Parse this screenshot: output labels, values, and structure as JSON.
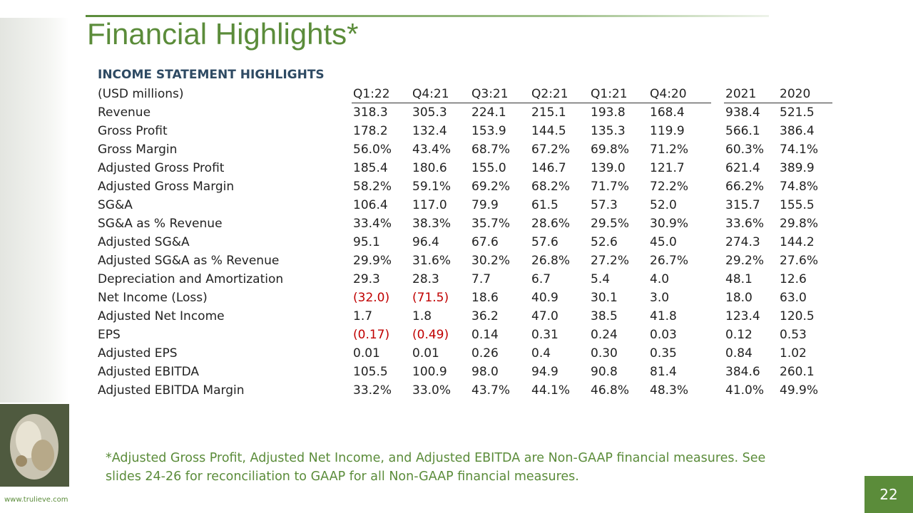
{
  "header": {
    "title": "Financial Highlights*"
  },
  "table": {
    "section": "INCOME STATEMENT HIGHLIGHTS",
    "columns": [
      "(USD millions)",
      "Q1:22",
      "Q4:21",
      "Q3:21",
      "Q2:21",
      "Q1:21",
      "Q4:20",
      "2021",
      "2020"
    ],
    "rows": [
      [
        "Revenue",
        "318.3",
        "305.3",
        "224.1",
        "215.1",
        "193.8",
        "168.4",
        "938.4",
        "521.5"
      ],
      [
        "Gross Profit",
        "178.2",
        "132.4",
        "153.9",
        "144.5",
        "135.3",
        "119.9",
        "566.1",
        "386.4"
      ],
      [
        "Gross Margin",
        "56.0%",
        "43.4%",
        "68.7%",
        "67.2%",
        "69.8%",
        "71.2%",
        "60.3%",
        "74.1%"
      ],
      [
        "Adjusted Gross Profit",
        "185.4",
        "180.6",
        "155.0",
        "146.7",
        "139.0",
        "121.7",
        "621.4",
        "389.9"
      ],
      [
        "Adjusted Gross Margin",
        "58.2%",
        "59.1%",
        "69.2%",
        "68.2%",
        "71.7%",
        "72.2%",
        "66.2%",
        "74.8%"
      ],
      [
        "SG&A",
        "106.4",
        "117.0",
        "79.9",
        "61.5",
        "57.3",
        "52.0",
        "315.7",
        "155.5"
      ],
      [
        "SG&A as % Revenue",
        "33.4%",
        "38.3%",
        "35.7%",
        "28.6%",
        "29.5%",
        "30.9%",
        "33.6%",
        "29.8%"
      ],
      [
        "Adjusted SG&A",
        "95.1",
        "96.4",
        "67.6",
        "57.6",
        "52.6",
        "45.0",
        "274.3",
        "144.2"
      ],
      [
        "Adjusted SG&A as % Revenue",
        "29.9%",
        "31.6%",
        "30.2%",
        "26.8%",
        "27.2%",
        "26.7%",
        "29.2%",
        "27.6%"
      ],
      [
        "Depreciation and Amortization",
        "29.3",
        "28.3",
        "7.7",
        "6.7",
        "5.4",
        "4.0",
        "48.1",
        "12.6"
      ],
      [
        "Net Income (Loss)",
        "(32.0)",
        "(71.5)",
        "18.6",
        "40.9",
        "30.1",
        "3.0",
        "18.0",
        "63.0"
      ],
      [
        "Adjusted Net Income",
        "1.7",
        "1.8",
        "36.2",
        "47.0",
        "38.5",
        "41.8",
        "123.4",
        "120.5"
      ],
      [
        "EPS",
        "(0.17)",
        "(0.49)",
        "0.14",
        "0.31",
        "0.24",
        "0.03",
        "0.12",
        "0.53"
      ],
      [
        "Adjusted EPS",
        "0.01",
        "0.01",
        "0.26",
        "0.4",
        "0.30",
        "0.35",
        "0.84",
        "1.02"
      ],
      [
        "Adjusted EBITDA",
        "105.5",
        "100.9",
        "98.0",
        "94.9",
        "90.8",
        "81.4",
        "384.6",
        "260.1"
      ],
      [
        "Adjusted EBITDA Margin",
        "33.2%",
        "33.0%",
        "43.7%",
        "44.1%",
        "46.8%",
        "48.3%",
        "41.0%",
        "49.9%"
      ]
    ]
  },
  "footnote": "*Adjusted Gross Profit, Adjusted Net Income, and Adjusted EBITDA are Non-GAAP financial measures. See slides 24-26 for reconciliation to GAAP for all Non-GAAP financial measures.",
  "website": "www.trulieve.com",
  "page_number": "22"
}
